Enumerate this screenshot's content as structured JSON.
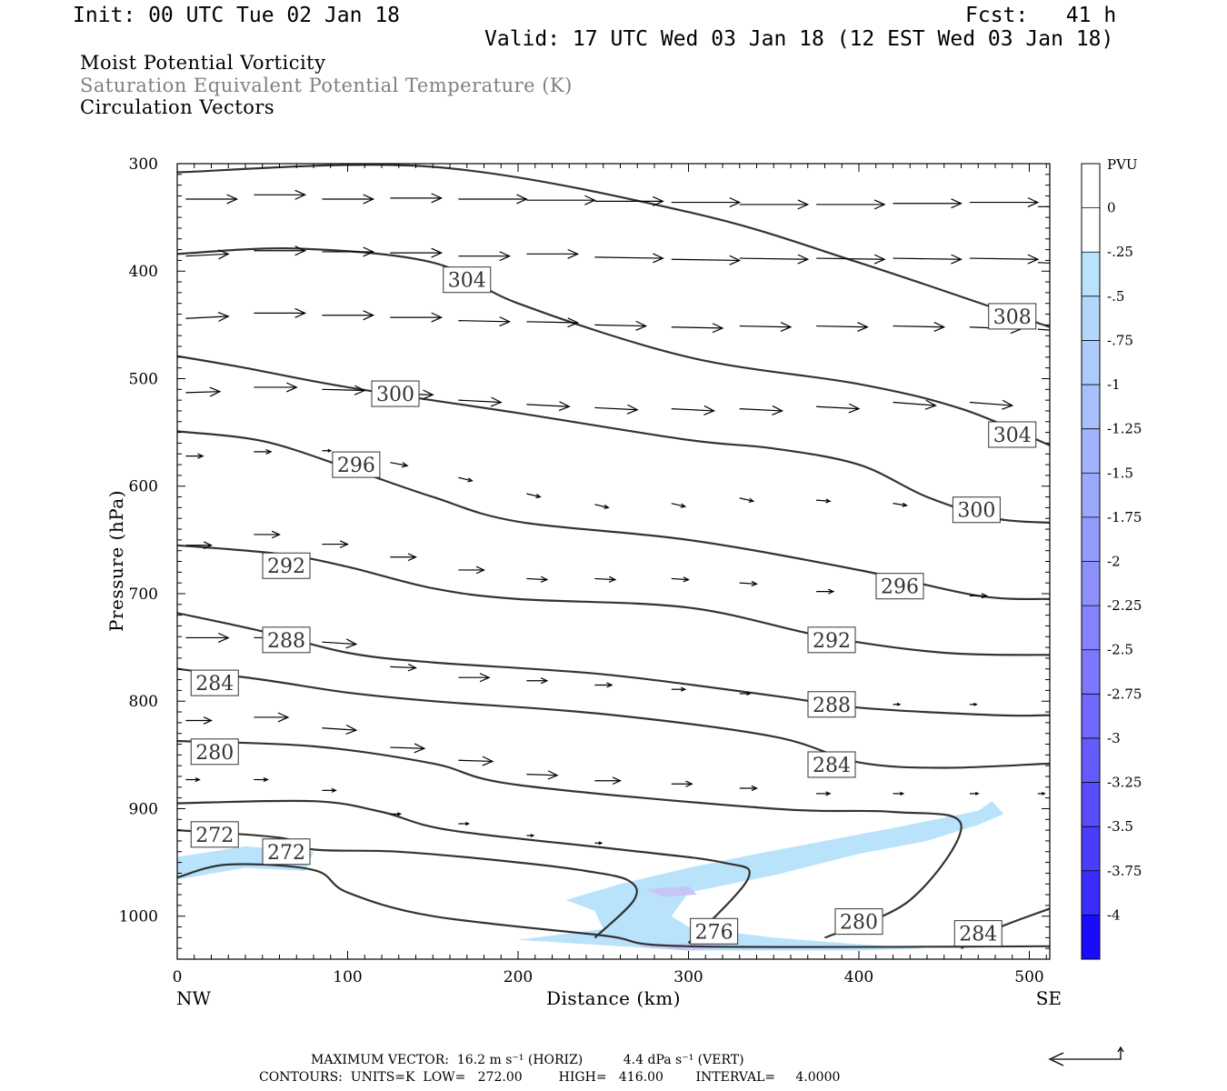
{
  "header": {
    "init": "Init: 00 UTC Tue 02 Jan 18",
    "fcst": "Fcst:   41 h",
    "valid": "Valid: 17 UTC Wed 03 Jan 18 (12 EST Wed 03 Jan 18)",
    "field1": "Moist Potential Vorticity",
    "field2": "Saturation Equivalent Potential Temperature (K)",
    "field3": "Circulation Vectors"
  },
  "colors": {
    "field2_text": "#808080",
    "contour": "#333333",
    "mpv_fill_light": "#b9e3fb",
    "mpv_fill_mid": "#c6c6f5"
  },
  "footer": {
    "line1": "MAXIMUM VECTOR:  16.2 m s⁻¹ (HORIZ)          4.4 dPa s⁻¹ (VERT)",
    "line2": "CONTOURS:  UNITS=K  LOW=   272.00         HIGH=   416.00        INTERVAL=     4.0000"
  },
  "chart_data": {
    "type": "line",
    "title": "",
    "xlabel": "Distance (km)",
    "ylabel": "Pressure (hPa)",
    "xlim": [
      0,
      512
    ],
    "ylim": [
      300,
      1040
    ],
    "x_ticks": [
      0,
      100,
      200,
      300,
      400,
      500
    ],
    "y_ticks": [
      300,
      400,
      500,
      600,
      700,
      800,
      900,
      1000
    ],
    "x_end_labels": {
      "left": "NW",
      "right": "SE"
    },
    "colorbar": {
      "title": "PVU",
      "labels": [
        "0",
        "-.25",
        "-.5",
        "-.75",
        "-1",
        "-1.25",
        "-1.5",
        "-1.75",
        "-2",
        "-2.25",
        "-2.5",
        "-2.75",
        "-3",
        "-3.25",
        "-3.5",
        "-3.75",
        "-4"
      ],
      "colors": [
        "#ffffff",
        "#ffffff",
        "#b9e3fb",
        "#b3d7fb",
        "#adccfb",
        "#a7c0fb",
        "#a1b4fb",
        "#9ba8fb",
        "#949bfb",
        "#8d8ffb",
        "#8583fb",
        "#7d77fb",
        "#7169fb",
        "#655bfb",
        "#584cfb",
        "#4a3dfb",
        "#3a2cfb",
        "#1a0cfb"
      ]
    },
    "contours": [
      {
        "label": "308",
        "points": [
          [
            0,
            308
          ],
          [
            150,
            303
          ],
          [
            300,
            345
          ],
          [
            400,
            392
          ],
          [
            512,
            452
          ]
        ],
        "labels_at": [
          [
            490,
            442
          ]
        ]
      },
      {
        "label": "304",
        "points": [
          [
            0,
            384
          ],
          [
            70,
            379
          ],
          [
            150,
            392
          ],
          [
            200,
            430
          ],
          [
            300,
            480
          ],
          [
            400,
            505
          ],
          [
            460,
            528
          ],
          [
            512,
            562
          ]
        ],
        "labels_at": [
          [
            170,
            408
          ],
          [
            490,
            552
          ]
        ]
      },
      {
        "label": "300",
        "points": [
          [
            0,
            479
          ],
          [
            40,
            490
          ],
          [
            100,
            508
          ],
          [
            200,
            532
          ],
          [
            300,
            557
          ],
          [
            350,
            565
          ],
          [
            400,
            580
          ],
          [
            440,
            610
          ],
          [
            480,
            630
          ],
          [
            512,
            634
          ]
        ],
        "labels_at": [
          [
            128,
            514
          ],
          [
            469,
            622
          ]
        ]
      },
      {
        "label": "296",
        "points": [
          [
            0,
            549
          ],
          [
            50,
            558
          ],
          [
            100,
            583
          ],
          [
            150,
            610
          ],
          [
            200,
            633
          ],
          [
            300,
            650
          ],
          [
            400,
            678
          ],
          [
            470,
            702
          ],
          [
            512,
            705
          ]
        ],
        "labels_at": [
          [
            105,
            580
          ],
          [
            424,
            693
          ]
        ]
      },
      {
        "label": "292",
        "points": [
          [
            0,
            655
          ],
          [
            60,
            663
          ],
          [
            100,
            675
          ],
          [
            150,
            695
          ],
          [
            200,
            705
          ],
          [
            300,
            713
          ],
          [
            380,
            740
          ],
          [
            450,
            755
          ],
          [
            512,
            757
          ]
        ],
        "labels_at": [
          [
            64,
            674
          ],
          [
            384,
            743
          ]
        ]
      },
      {
        "label": "288",
        "points": [
          [
            0,
            718
          ],
          [
            50,
            735
          ],
          [
            100,
            755
          ],
          [
            150,
            764
          ],
          [
            250,
            775
          ],
          [
            350,
            795
          ],
          [
            400,
            806
          ],
          [
            480,
            813
          ],
          [
            512,
            813
          ]
        ],
        "labels_at": [
          [
            64,
            743
          ],
          [
            384,
            803
          ]
        ]
      },
      {
        "label": "284",
        "points": [
          [
            0,
            770
          ],
          [
            50,
            780
          ],
          [
            100,
            792
          ],
          [
            150,
            800
          ],
          [
            250,
            812
          ],
          [
            350,
            833
          ],
          [
            400,
            857
          ],
          [
            450,
            862
          ],
          [
            512,
            858
          ]
        ],
        "labels_at": [
          [
            22,
            783
          ],
          [
            384,
            859
          ]
        ]
      },
      {
        "label": "280",
        "points": [
          [
            0,
            837
          ],
          [
            80,
            842
          ],
          [
            150,
            858
          ],
          [
            200,
            878
          ],
          [
            350,
            900
          ],
          [
            420,
            903
          ],
          [
            460,
            915
          ],
          [
            430,
            985
          ],
          [
            380,
            1020
          ]
        ],
        "labels_at": [
          [
            22,
            847
          ],
          [
            400,
            1005
          ]
        ]
      },
      {
        "label": "276",
        "points": [
          [
            0,
            895
          ],
          [
            80,
            893
          ],
          [
            120,
            903
          ],
          [
            160,
            920
          ],
          [
            260,
            938
          ],
          [
            320,
            950
          ],
          [
            335,
            965
          ],
          [
            300,
            1025
          ]
        ],
        "labels_at": [
          [
            315,
            1014
          ]
        ]
      },
      {
        "label": "272",
        "points": [
          [
            0,
            920
          ],
          [
            60,
            927
          ],
          [
            80,
            938
          ],
          [
            130,
            940
          ],
          [
            200,
            950
          ],
          [
            240,
            958
          ],
          [
            265,
            967
          ],
          [
            268,
            985
          ],
          [
            245,
            1020
          ]
        ],
        "labels_at": [
          [
            22,
            924
          ],
          [
            64,
            940
          ]
        ]
      },
      {
        "label": "",
        "points": [
          [
            0,
            964
          ],
          [
            30,
            952
          ],
          [
            80,
            957
          ],
          [
            100,
            978
          ],
          [
            150,
            1000
          ],
          [
            250,
            1018
          ],
          [
            300,
            1028
          ],
          [
            512,
            1028
          ]
        ],
        "labels_at": []
      },
      {
        "label": "284",
        "points": [
          [
            460,
            1030
          ],
          [
            480,
            1012
          ],
          [
            512,
            993
          ]
        ],
        "labels_at": [
          [
            470,
            1016
          ]
        ]
      }
    ],
    "mpv_regions": [
      {
        "value": -0.25,
        "points": [
          [
            0,
            945
          ],
          [
            40,
            935
          ],
          [
            80,
            940
          ],
          [
            75,
            958
          ],
          [
            40,
            955
          ],
          [
            0,
            966
          ]
        ]
      },
      {
        "value": -0.25,
        "points": [
          [
            228,
            985
          ],
          [
            260,
            970
          ],
          [
            300,
            955
          ],
          [
            340,
            942
          ],
          [
            380,
            930
          ],
          [
            420,
            918
          ],
          [
            470,
            902
          ],
          [
            478,
            893
          ],
          [
            485,
            905
          ],
          [
            470,
            915
          ],
          [
            440,
            930
          ],
          [
            400,
            942
          ],
          [
            350,
            962
          ],
          [
            300,
            978
          ],
          [
            290,
            1000
          ],
          [
            300,
            1010
          ],
          [
            350,
            1020
          ],
          [
            400,
            1026
          ],
          [
            440,
            1030
          ],
          [
            400,
            1032
          ],
          [
            300,
            1032
          ],
          [
            200,
            1022
          ],
          [
            250,
            1012
          ],
          [
            245,
            995
          ]
        ]
      },
      {
        "value": -0.5,
        "points": [
          [
            275,
            975
          ],
          [
            300,
            972
          ],
          [
            305,
            980
          ],
          [
            285,
            982
          ]
        ]
      },
      {
        "value": -0.5,
        "points": [
          [
            270,
            1028
          ],
          [
            300,
            1025
          ],
          [
            330,
            1028
          ],
          [
            300,
            1032
          ]
        ]
      }
    ],
    "vectors": [
      [
        5,
        333,
        30,
        0
      ],
      [
        45,
        329,
        30,
        0
      ],
      [
        85,
        333,
        30,
        0
      ],
      [
        125,
        332,
        30,
        0
      ],
      [
        165,
        333,
        40,
        0
      ],
      [
        205,
        334,
        40,
        0
      ],
      [
        245,
        335,
        40,
        0
      ],
      [
        290,
        336,
        40,
        0
      ],
      [
        330,
        338,
        40,
        0
      ],
      [
        375,
        338,
        40,
        0
      ],
      [
        420,
        337,
        40,
        0
      ],
      [
        465,
        336,
        40,
        0
      ],
      [
        505,
        340,
        15,
        0
      ],
      [
        5,
        386,
        25,
        -2
      ],
      [
        45,
        381,
        30,
        0
      ],
      [
        85,
        382,
        30,
        0
      ],
      [
        125,
        383,
        30,
        0
      ],
      [
        165,
        386,
        30,
        0
      ],
      [
        205,
        384,
        30,
        0
      ],
      [
        245,
        387,
        40,
        1
      ],
      [
        290,
        389,
        40,
        1
      ],
      [
        330,
        388,
        40,
        1
      ],
      [
        375,
        388,
        40,
        1
      ],
      [
        420,
        388,
        40,
        1
      ],
      [
        465,
        388,
        40,
        1
      ],
      [
        505,
        392,
        30,
        2
      ],
      [
        5,
        444,
        25,
        -2
      ],
      [
        45,
        439,
        30,
        0
      ],
      [
        85,
        441,
        30,
        0
      ],
      [
        125,
        443,
        30,
        0
      ],
      [
        165,
        446,
        30,
        1
      ],
      [
        205,
        447,
        30,
        1
      ],
      [
        245,
        450,
        30,
        1
      ],
      [
        290,
        452,
        30,
        1
      ],
      [
        330,
        451,
        30,
        1
      ],
      [
        375,
        451,
        30,
        1
      ],
      [
        420,
        451,
        30,
        1
      ],
      [
        465,
        452,
        30,
        2
      ],
      [
        505,
        454,
        25,
        3
      ],
      [
        5,
        513,
        20,
        -1
      ],
      [
        45,
        508,
        25,
        0
      ],
      [
        85,
        510,
        25,
        1
      ],
      [
        125,
        514,
        25,
        1
      ],
      [
        165,
        520,
        25,
        2
      ],
      [
        205,
        524,
        25,
        2
      ],
      [
        245,
        527,
        25,
        2
      ],
      [
        290,
        528,
        25,
        2
      ],
      [
        330,
        528,
        25,
        2
      ],
      [
        375,
        526,
        25,
        2
      ],
      [
        420,
        522,
        25,
        3
      ],
      [
        465,
        522,
        25,
        3
      ],
      [
        5,
        572,
        10,
        0
      ],
      [
        45,
        568,
        10,
        0
      ],
      [
        85,
        567,
        5,
        0
      ],
      [
        125,
        578,
        10,
        3
      ],
      [
        165,
        592,
        8,
        3
      ],
      [
        205,
        607,
        8,
        3
      ],
      [
        245,
        617,
        8,
        3
      ],
      [
        290,
        616,
        8,
        3
      ],
      [
        330,
        611,
        8,
        3
      ],
      [
        375,
        613,
        8,
        1
      ],
      [
        420,
        616,
        8,
        2
      ],
      [
        5,
        655,
        15,
        0
      ],
      [
        45,
        645,
        15,
        0
      ],
      [
        85,
        654,
        15,
        0
      ],
      [
        125,
        666,
        15,
        0
      ],
      [
        165,
        678,
        15,
        0
      ],
      [
        205,
        686,
        12,
        1
      ],
      [
        245,
        686,
        12,
        1
      ],
      [
        290,
        686,
        10,
        1
      ],
      [
        330,
        690,
        10,
        1
      ],
      [
        375,
        698,
        10,
        0
      ],
      [
        420,
        700,
        10,
        0
      ],
      [
        465,
        702,
        10,
        0
      ],
      [
        5,
        741,
        25,
        0
      ],
      [
        45,
        741,
        25,
        0
      ],
      [
        85,
        745,
        20,
        2
      ],
      [
        125,
        768,
        15,
        1
      ],
      [
        165,
        778,
        18,
        0
      ],
      [
        205,
        781,
        12,
        0
      ],
      [
        245,
        785,
        10,
        0
      ],
      [
        290,
        789,
        8,
        0
      ],
      [
        330,
        793,
        6,
        0
      ],
      [
        375,
        797,
        6,
        0
      ],
      [
        420,
        803,
        4,
        0
      ],
      [
        465,
        803,
        4,
        0
      ],
      [
        5,
        818,
        15,
        0
      ],
      [
        45,
        815,
        20,
        0
      ],
      [
        85,
        825,
        20,
        2
      ],
      [
        125,
        843,
        20,
        1
      ],
      [
        165,
        855,
        20,
        1
      ],
      [
        205,
        868,
        18,
        1
      ],
      [
        245,
        874,
        15,
        0
      ],
      [
        290,
        877,
        12,
        0
      ],
      [
        330,
        881,
        10,
        0
      ],
      [
        375,
        886,
        8,
        0
      ],
      [
        420,
        886,
        6,
        0
      ],
      [
        465,
        886,
        5,
        0
      ],
      [
        505,
        886,
        4,
        0
      ],
      [
        5,
        873,
        8,
        0
      ],
      [
        45,
        873,
        8,
        0
      ],
      [
        85,
        883,
        8,
        0
      ],
      [
        125,
        905,
        6,
        0
      ],
      [
        165,
        914,
        6,
        0
      ],
      [
        205,
        925,
        4,
        0
      ],
      [
        245,
        932,
        4,
        0
      ]
    ]
  }
}
